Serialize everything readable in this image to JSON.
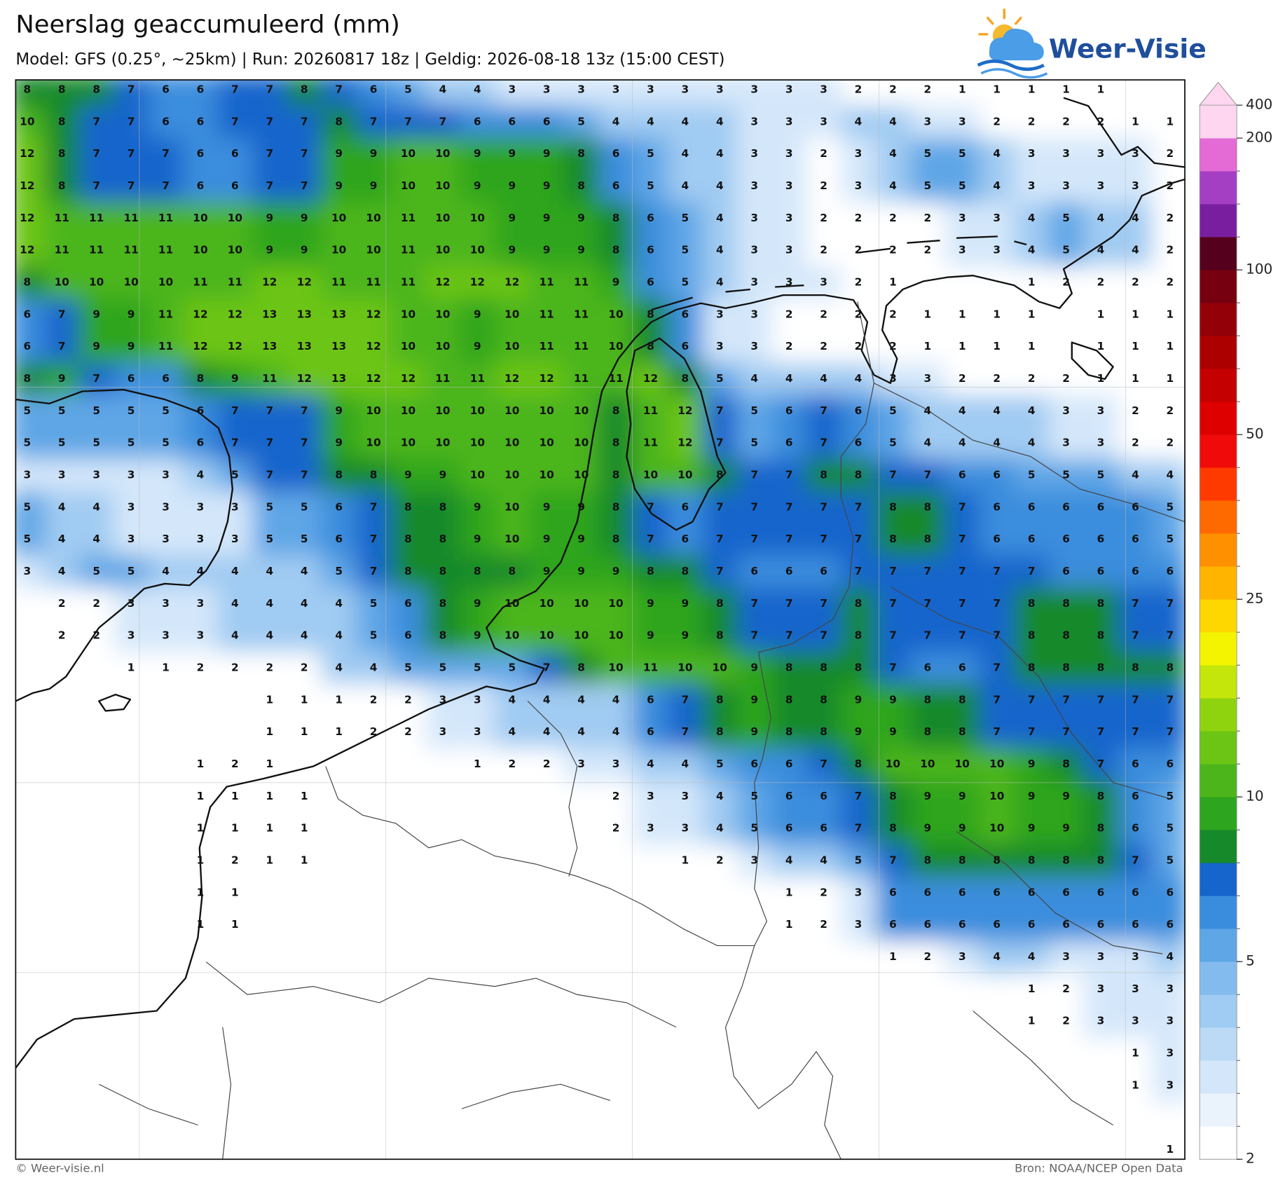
{
  "header": {
    "title": "Neerslag geaccumuleerd (mm)",
    "subtitle": "Model: GFS (0.25°, ~25km)  |  Run: 20260817 18z  |  Geldig: 2026-08-18 13z (15:00 CEST)",
    "logo": "Weer-Visie"
  },
  "map": {
    "type": "grid",
    "rows": [
      [
        8,
        8,
        8,
        7,
        6,
        6,
        7,
        7,
        8,
        7,
        6,
        5,
        4,
        4,
        3,
        3,
        3,
        3,
        3,
        3,
        3,
        3,
        3,
        3,
        2,
        2,
        2,
        1,
        1,
        1,
        1,
        1,
        null,
        null
      ],
      [
        10,
        8,
        7,
        7,
        6,
        6,
        7,
        7,
        7,
        8,
        7,
        7,
        7,
        6,
        6,
        6,
        5,
        4,
        4,
        4,
        4,
        3,
        3,
        3,
        4,
        4,
        3,
        3,
        2,
        2,
        2,
        2,
        1,
        1
      ],
      [
        12,
        8,
        7,
        7,
        7,
        6,
        6,
        7,
        7,
        9,
        9,
        10,
        10,
        9,
        9,
        9,
        8,
        6,
        5,
        4,
        4,
        3,
        3,
        2,
        3,
        4,
        5,
        5,
        4,
        3,
        3,
        3,
        3,
        2
      ],
      [
        12,
        8,
        7,
        7,
        7,
        6,
        6,
        7,
        7,
        9,
        9,
        10,
        10,
        9,
        9,
        9,
        8,
        6,
        5,
        4,
        4,
        3,
        3,
        2,
        3,
        4,
        5,
        5,
        4,
        3,
        3,
        3,
        3,
        2
      ],
      [
        12,
        11,
        11,
        11,
        11,
        10,
        10,
        9,
        9,
        10,
        10,
        11,
        10,
        10,
        9,
        9,
        9,
        8,
        6,
        5,
        4,
        3,
        3,
        2,
        2,
        2,
        2,
        3,
        3,
        4,
        5,
        4,
        4,
        2
      ],
      [
        12,
        11,
        11,
        11,
        11,
        10,
        10,
        9,
        9,
        10,
        10,
        11,
        10,
        10,
        9,
        9,
        9,
        8,
        6,
        5,
        4,
        3,
        3,
        2,
        2,
        2,
        2,
        3,
        3,
        4,
        5,
        4,
        4,
        2
      ],
      [
        8,
        10,
        10,
        10,
        10,
        11,
        11,
        12,
        12,
        11,
        11,
        11,
        12,
        12,
        12,
        11,
        11,
        9,
        6,
        5,
        4,
        3,
        3,
        3,
        2,
        1,
        null,
        null,
        null,
        1,
        2,
        2,
        2,
        2
      ],
      [
        6,
        7,
        9,
        9,
        11,
        12,
        12,
        13,
        13,
        13,
        12,
        10,
        10,
        9,
        10,
        11,
        11,
        10,
        8,
        6,
        3,
        3,
        2,
        2,
        2,
        2,
        1,
        1,
        1,
        1,
        null,
        1,
        1,
        1
      ],
      [
        6,
        7,
        9,
        9,
        11,
        12,
        12,
        13,
        13,
        13,
        12,
        10,
        10,
        9,
        10,
        11,
        11,
        10,
        8,
        6,
        3,
        3,
        2,
        2,
        2,
        2,
        1,
        1,
        1,
        1,
        null,
        1,
        1,
        1
      ],
      [
        8,
        9,
        7,
        6,
        6,
        8,
        9,
        11,
        12,
        13,
        12,
        12,
        11,
        11,
        12,
        12,
        11,
        11,
        12,
        8,
        5,
        4,
        4,
        4,
        4,
        3,
        3,
        2,
        2,
        2,
        2,
        1,
        1,
        1
      ],
      [
        5,
        5,
        5,
        5,
        5,
        6,
        7,
        7,
        7,
        9,
        10,
        10,
        10,
        10,
        10,
        10,
        10,
        8,
        11,
        12,
        7,
        5,
        6,
        7,
        6,
        5,
        4,
        4,
        4,
        4,
        3,
        3,
        2,
        2
      ],
      [
        5,
        5,
        5,
        5,
        5,
        6,
        7,
        7,
        7,
        9,
        10,
        10,
        10,
        10,
        10,
        10,
        10,
        8,
        11,
        12,
        7,
        5,
        6,
        7,
        6,
        5,
        4,
        4,
        4,
        4,
        3,
        3,
        2,
        2
      ],
      [
        3,
        3,
        3,
        3,
        3,
        4,
        5,
        7,
        7,
        8,
        8,
        9,
        9,
        10,
        10,
        10,
        10,
        8,
        10,
        10,
        8,
        7,
        7,
        8,
        8,
        7,
        7,
        6,
        6,
        5,
        5,
        5,
        4,
        4
      ],
      [
        5,
        4,
        4,
        3,
        3,
        3,
        3,
        5,
        5,
        6,
        7,
        8,
        8,
        9,
        10,
        9,
        9,
        8,
        7,
        6,
        7,
        7,
        7,
        7,
        7,
        8,
        8,
        7,
        6,
        6,
        6,
        6,
        6,
        5
      ],
      [
        5,
        4,
        4,
        3,
        3,
        3,
        3,
        5,
        5,
        6,
        7,
        8,
        8,
        9,
        10,
        9,
        9,
        8,
        7,
        6,
        7,
        7,
        7,
        7,
        7,
        8,
        8,
        7,
        6,
        6,
        6,
        6,
        6,
        5
      ],
      [
        3,
        4,
        5,
        5,
        4,
        4,
        4,
        4,
        4,
        5,
        7,
        8,
        8,
        8,
        8,
        9,
        9,
        9,
        8,
        8,
        7,
        6,
        6,
        6,
        7,
        7,
        7,
        7,
        7,
        7,
        6,
        6,
        6,
        6
      ],
      [
        null,
        2,
        2,
        3,
        3,
        3,
        4,
        4,
        4,
        4,
        5,
        6,
        8,
        9,
        10,
        10,
        10,
        10,
        9,
        9,
        8,
        7,
        7,
        7,
        8,
        7,
        7,
        7,
        7,
        8,
        8,
        8,
        7,
        7
      ],
      [
        null,
        2,
        2,
        3,
        3,
        3,
        4,
        4,
        4,
        4,
        5,
        6,
        8,
        9,
        10,
        10,
        10,
        10,
        9,
        9,
        8,
        7,
        7,
        7,
        8,
        7,
        7,
        7,
        7,
        8,
        8,
        8,
        7,
        7
      ],
      [
        null,
        null,
        null,
        1,
        1,
        2,
        2,
        2,
        2,
        4,
        4,
        5,
        5,
        5,
        5,
        7,
        8,
        10,
        11,
        10,
        10,
        9,
        8,
        8,
        8,
        7,
        6,
        6,
        7,
        8,
        8,
        8,
        8,
        8
      ],
      [
        null,
        null,
        null,
        null,
        null,
        null,
        null,
        1,
        1,
        1,
        2,
        2,
        3,
        3,
        4,
        4,
        4,
        4,
        6,
        7,
        8,
        9,
        8,
        8,
        9,
        9,
        8,
        8,
        7,
        7,
        7,
        7,
        7,
        7
      ],
      [
        null,
        null,
        null,
        null,
        null,
        null,
        null,
        1,
        1,
        1,
        2,
        2,
        3,
        3,
        4,
        4,
        4,
        4,
        6,
        7,
        8,
        9,
        8,
        8,
        9,
        9,
        8,
        8,
        7,
        7,
        7,
        7,
        7,
        7
      ],
      [
        null,
        null,
        null,
        null,
        null,
        1,
        2,
        1,
        null,
        null,
        null,
        null,
        null,
        1,
        2,
        2,
        3,
        3,
        4,
        4,
        5,
        6,
        6,
        7,
        8,
        10,
        10,
        10,
        10,
        9,
        8,
        7,
        6,
        6
      ],
      [
        null,
        null,
        null,
        null,
        null,
        1,
        1,
        1,
        1,
        null,
        null,
        null,
        null,
        null,
        null,
        null,
        null,
        2,
        3,
        3,
        4,
        5,
        6,
        6,
        7,
        8,
        9,
        9,
        10,
        9,
        9,
        8,
        6,
        5
      ],
      [
        null,
        null,
        null,
        null,
        null,
        1,
        1,
        1,
        1,
        null,
        null,
        null,
        null,
        null,
        null,
        null,
        null,
        2,
        3,
        3,
        4,
        5,
        6,
        6,
        7,
        8,
        9,
        9,
        10,
        9,
        9,
        8,
        6,
        5
      ],
      [
        null,
        null,
        null,
        null,
        null,
        1,
        2,
        1,
        1,
        null,
        null,
        null,
        null,
        null,
        null,
        null,
        null,
        null,
        null,
        1,
        2,
        3,
        4,
        4,
        5,
        7,
        8,
        8,
        8,
        8,
        8,
        8,
        7,
        5
      ],
      [
        null,
        null,
        null,
        null,
        null,
        1,
        1,
        null,
        null,
        null,
        null,
        null,
        null,
        null,
        null,
        null,
        null,
        null,
        null,
        null,
        null,
        null,
        1,
        2,
        3,
        6,
        6,
        6,
        6,
        6,
        6,
        6,
        6,
        6
      ],
      [
        null,
        null,
        null,
        null,
        null,
        1,
        1,
        null,
        null,
        null,
        null,
        null,
        null,
        null,
        null,
        null,
        null,
        null,
        null,
        null,
        null,
        null,
        1,
        2,
        3,
        6,
        6,
        6,
        6,
        6,
        6,
        6,
        6,
        6
      ],
      [
        null,
        null,
        null,
        null,
        null,
        null,
        null,
        null,
        null,
        null,
        null,
        null,
        null,
        null,
        null,
        null,
        null,
        null,
        null,
        null,
        null,
        null,
        null,
        null,
        null,
        1,
        2,
        3,
        4,
        4,
        3,
        3,
        3,
        4
      ],
      [
        null,
        null,
        null,
        null,
        null,
        null,
        null,
        null,
        null,
        null,
        null,
        null,
        null,
        null,
        null,
        null,
        null,
        null,
        null,
        null,
        null,
        null,
        null,
        null,
        null,
        null,
        null,
        null,
        null,
        1,
        2,
        3,
        3,
        3
      ],
      [
        null,
        null,
        null,
        null,
        null,
        null,
        null,
        null,
        null,
        null,
        null,
        null,
        null,
        null,
        null,
        null,
        null,
        null,
        null,
        null,
        null,
        null,
        null,
        null,
        null,
        null,
        null,
        null,
        null,
        1,
        2,
        3,
        3,
        3
      ],
      [
        null,
        null,
        null,
        null,
        null,
        null,
        null,
        null,
        null,
        null,
        null,
        null,
        null,
        null,
        null,
        null,
        null,
        null,
        null,
        null,
        null,
        null,
        null,
        null,
        null,
        null,
        null,
        null,
        null,
        null,
        null,
        null,
        1,
        3
      ],
      [
        null,
        null,
        null,
        null,
        null,
        null,
        null,
        null,
        null,
        null,
        null,
        null,
        null,
        null,
        null,
        null,
        null,
        null,
        null,
        null,
        null,
        null,
        null,
        null,
        null,
        null,
        null,
        null,
        null,
        null,
        null,
        null,
        1,
        3
      ],
      [
        null,
        null,
        null,
        null,
        null,
        null,
        null,
        null,
        null,
        null,
        null,
        null,
        null,
        null,
        null,
        null,
        null,
        null,
        null,
        null,
        null,
        null,
        null,
        null,
        null,
        null,
        null,
        null,
        null,
        null,
        null,
        null,
        null,
        null
      ],
      [
        null,
        null,
        null,
        null,
        null,
        null,
        null,
        null,
        null,
        null,
        null,
        null,
        null,
        null,
        null,
        null,
        null,
        null,
        null,
        null,
        null,
        null,
        null,
        null,
        null,
        null,
        null,
        null,
        null,
        null,
        null,
        null,
        null,
        1
      ]
    ]
  },
  "colorbar": {
    "levels": [
      2,
      2.5,
      3,
      3.5,
      4,
      4.5,
      5,
      6,
      7,
      8,
      9,
      10,
      12,
      14,
      16,
      18,
      20,
      25,
      30,
      35,
      40,
      45,
      50,
      60,
      70,
      80,
      90,
      100,
      125,
      150,
      175,
      200,
      400
    ],
    "colors": [
      "#ffffff",
      "#eaf3fc",
      "#d4e7fa",
      "#bcdaf6",
      "#a0cbf2",
      "#84bbee",
      "#5ea6e6",
      "#3a8ddd",
      "#1565cc",
      "#16892a",
      "#2ea51f",
      "#4cb51b",
      "#6cc515",
      "#8fd30f",
      "#c4e60a",
      "#f4f400",
      "#ffd700",
      "#ffb400",
      "#ff9100",
      "#ff6a00",
      "#ff3a00",
      "#f00a0a",
      "#de0000",
      "#c40000",
      "#ac0000",
      "#940008",
      "#76000f",
      "#55001c",
      "#7a1ea0",
      "#a43fc4",
      "#e46ad6",
      "#ffd6f0"
    ],
    "extend_color": "#ffd6f0",
    "ticks": [
      2,
      5,
      10,
      25,
      50,
      100,
      200,
      400
    ]
  },
  "footer": {
    "left": "© Weer-visie.nl",
    "right": "Bron: NOAA/NCEP Open Data"
  }
}
